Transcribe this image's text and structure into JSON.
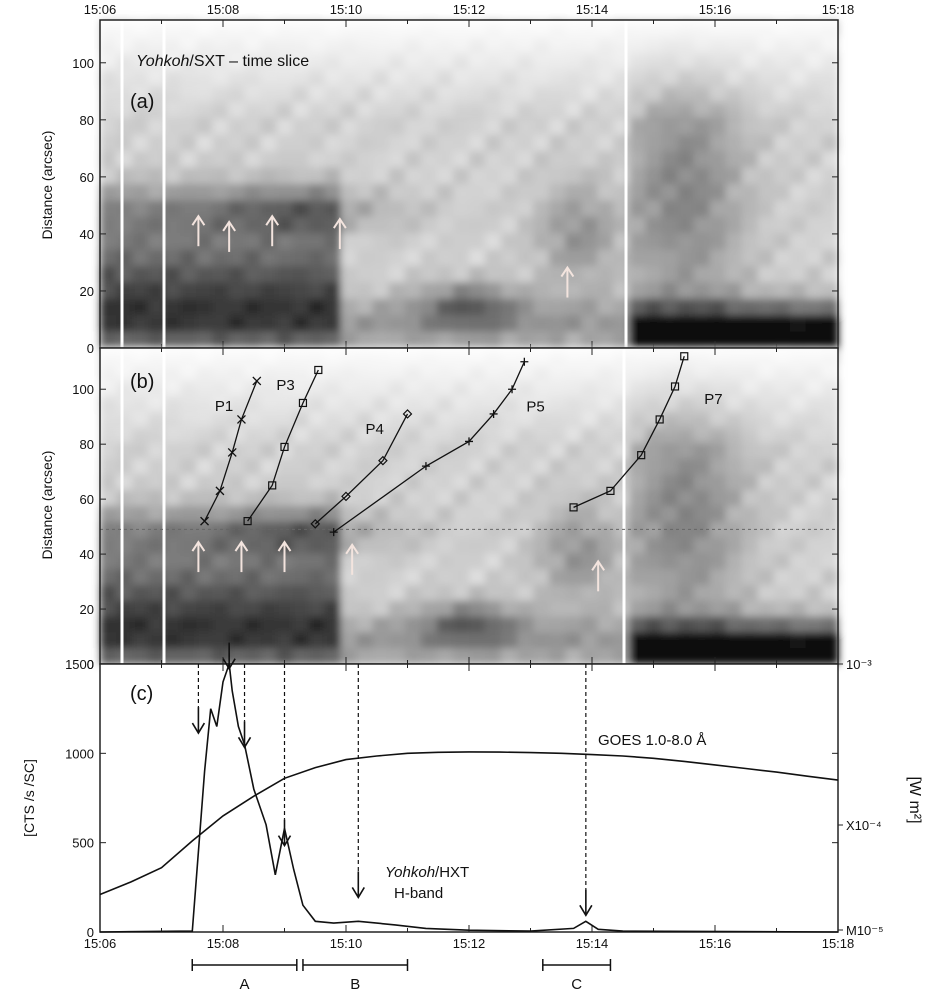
{
  "chart_data": [
    {
      "type": "heatmap",
      "panel_label": "(a)",
      "title_italic": "Yohkoh",
      "title_rest": "/SXT – time slice",
      "ylabel": "Distance (arcsec)",
      "x_range": [
        "15:06",
        "15:18"
      ],
      "y_range": [
        0,
        115
      ],
      "y_ticks": [
        0,
        20,
        40,
        60,
        80,
        100
      ],
      "x_tick_labels": [
        "15:06",
        "15:08",
        "15:10",
        "15:12",
        "15:14",
        "15:16",
        "15:18"
      ],
      "up_arrows": [
        {
          "t": "15:07.6",
          "d": 42
        },
        {
          "t": "15:08.1",
          "d": 40
        },
        {
          "t": "15:08.8",
          "d": 42
        },
        {
          "t": "15:09.9",
          "d": 41
        },
        {
          "t": "15:13.6",
          "d": 24
        }
      ]
    },
    {
      "type": "heatmap",
      "panel_label": "(b)",
      "ylabel": "Distance (arcsec)",
      "y_range": [
        0,
        115
      ],
      "y_ticks": [
        0,
        20,
        40,
        60,
        80,
        100
      ],
      "reference_line_d": 49,
      "tracks": [
        {
          "name": "P1",
          "marker": "x",
          "points": [
            [
              "15:07.7",
              52
            ],
            [
              "15:07.95",
              63
            ],
            [
              "15:08.15",
              77
            ],
            [
              "15:08.3",
              89
            ],
            [
              "15:08.55",
              103
            ]
          ]
        },
        {
          "name": "P3",
          "marker": "square",
          "points": [
            [
              "15:08.4",
              52
            ],
            [
              "15:08.8",
              65
            ],
            [
              "15:09.0",
              79
            ],
            [
              "15:09.3",
              95
            ],
            [
              "15:09.55",
              107
            ]
          ]
        },
        {
          "name": "P4",
          "marker": "diamond",
          "points": [
            [
              "15:09.5",
              51
            ],
            [
              "15:10.0",
              61
            ],
            [
              "15:10.6",
              74
            ],
            [
              "15:11.0",
              91
            ]
          ]
        },
        {
          "name": "P5",
          "marker": "plus",
          "points": [
            [
              "15:09.8",
              48
            ],
            [
              "15:11.3",
              72
            ],
            [
              "15:12.0",
              81
            ],
            [
              "15:12.4",
              91
            ],
            [
              "15:12.7",
              100
            ],
            [
              "15:12.9",
              110
            ]
          ]
        },
        {
          "name": "P7",
          "marker": "square",
          "points": [
            [
              "15:13.7",
              57
            ],
            [
              "15:14.3",
              63
            ],
            [
              "15:14.8",
              76
            ],
            [
              "15:15.1",
              89
            ],
            [
              "15:15.35",
              101
            ],
            [
              "15:15.5",
              112
            ]
          ]
        }
      ],
      "up_arrows": [
        {
          "t": "15:07.6",
          "d": 40
        },
        {
          "t": "15:08.3",
          "d": 40
        },
        {
          "t": "15:09.0",
          "d": 40
        },
        {
          "t": "15:10.1",
          "d": 39
        },
        {
          "t": "15:14.1",
          "d": 33
        }
      ]
    },
    {
      "type": "line",
      "panel_label": "(c)",
      "ylabel": "[CTS /s /SC]",
      "ylabel_right": "[W m²]",
      "y_range": [
        0,
        1500
      ],
      "y_ticks": [
        0,
        500,
        1000,
        1500
      ],
      "right_ticks": [
        "10⁻³",
        "X10⁻⁴",
        "M10⁻⁵"
      ],
      "x_range": [
        "15:06",
        "15:18"
      ],
      "x_tick_labels": [
        "15:06",
        "15:08",
        "15:10",
        "15:12",
        "15:14",
        "15:16",
        "15:18"
      ],
      "series": [
        {
          "name": "GOES 1.0-8.0 Å",
          "x": [
            "15:06",
            "15:06.5",
            "15:07",
            "15:07.5",
            "15:08",
            "15:08.5",
            "15:09",
            "15:09.5",
            "15:10",
            "15:10.5",
            "15:11",
            "15:11.5",
            "15:12",
            "15:12.5",
            "15:13",
            "15:13.5",
            "15:14",
            "15:14.5",
            "15:15",
            "15:15.5",
            "15:16",
            "15:16.5",
            "15:17",
            "15:17.5",
            "15:18"
          ],
          "values": [
            210,
            280,
            360,
            510,
            650,
            760,
            860,
            920,
            965,
            985,
            1000,
            1006,
            1008,
            1007,
            1004,
            1000,
            993,
            985,
            972,
            955,
            935,
            915,
            895,
            872,
            850
          ]
        },
        {
          "name": "Yohkoh/HXT H-band",
          "x": [
            "15:06",
            "15:07.5",
            "15:07.7",
            "15:07.8",
            "15:07.9",
            "15:08.0",
            "15:08.1",
            "15:08.15",
            "15:08.25",
            "15:08.35",
            "15:08.5",
            "15:08.7",
            "15:08.85",
            "15:09.0",
            "15:09.15",
            "15:09.3",
            "15:09.5",
            "15:09.8",
            "15:10.2",
            "15:10.8",
            "15:11.3",
            "15:12",
            "15:13",
            "15:13.7",
            "15:13.9",
            "15:14.1",
            "15:14.5",
            "15:18"
          ],
          "values": [
            0,
            5,
            900,
            1250,
            1150,
            1400,
            1500,
            1350,
            1150,
            1050,
            800,
            600,
            320,
            580,
            350,
            150,
            60,
            50,
            60,
            40,
            20,
            10,
            5,
            20,
            60,
            15,
            5,
            0
          ]
        }
      ],
      "label_goes": "GOES 1.0-8.0 Å",
      "label_hxt_italic": "Yohkoh",
      "label_hxt_rest": "/HXT",
      "label_hxt_band": "H-band",
      "intervals": [
        {
          "label": "A",
          "start": "15:07.5",
          "end": "15:09.2"
        },
        {
          "label": "B",
          "start": "15:09.3",
          "end": "15:11.0"
        },
        {
          "label": "C",
          "start": "15:13.2",
          "end": "15:14.3"
        }
      ],
      "down_arrows": [
        {
          "t": "15:07.6",
          "v": 1080
        },
        {
          "t": "15:08.1",
          "v": 1440
        },
        {
          "t": "15:08.35",
          "v": 1000
        },
        {
          "t": "15:09.0",
          "v": 450
        },
        {
          "t": "15:10.2",
          "v": 160
        },
        {
          "t": "15:13.9",
          "v": 60
        }
      ]
    }
  ]
}
